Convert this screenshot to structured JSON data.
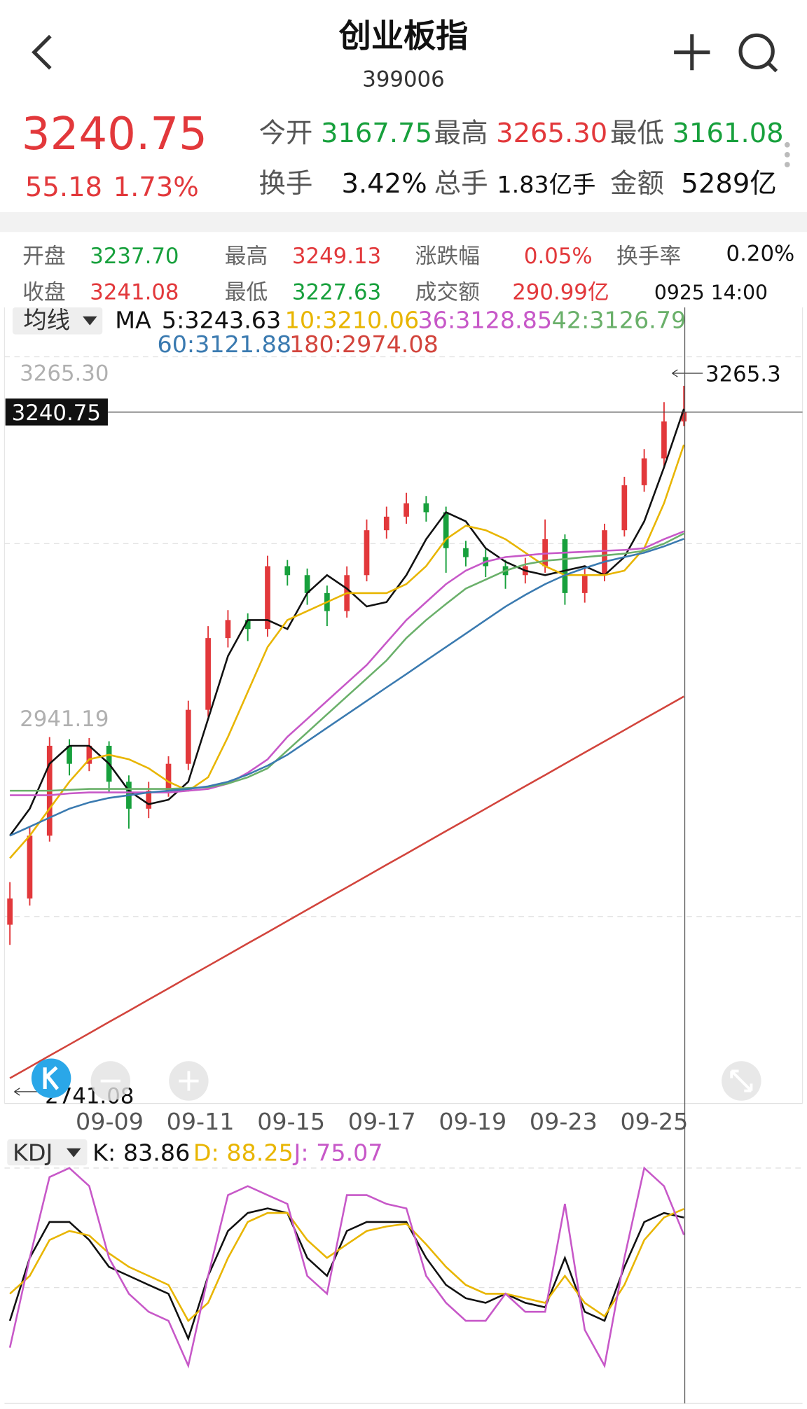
{
  "header": {
    "title": "创业板指",
    "code": "399006"
  },
  "quote": {
    "price": "3240.75",
    "change": "55.18",
    "change_pct": "1.73%",
    "fields": [
      {
        "label": "今开",
        "value": "3167.75"
      },
      {
        "label": "最高",
        "value": "3265.30"
      },
      {
        "label": "最低",
        "value": "3161.08"
      },
      {
        "label": "换手",
        "value": "3.42%"
      },
      {
        "label": "总手",
        "value": "1.83亿手"
      },
      {
        "label": "金额",
        "value": "5289亿"
      }
    ]
  },
  "detail": {
    "fields": [
      {
        "label": "开盘",
        "value": "3237.70"
      },
      {
        "label": "最高",
        "value": "3249.13"
      },
      {
        "label": "涨跌幅",
        "value": "0.05%"
      },
      {
        "label": "换手率",
        "value": "0.20%"
      },
      {
        "label": "收盘",
        "value": "3241.08"
      },
      {
        "label": "最低",
        "value": "3227.63"
      },
      {
        "label": "成交额",
        "value": "290.99亿"
      }
    ],
    "time": "0925 14:00"
  },
  "chart_data": [
    {
      "type": "candlestick",
      "indicator": "均线",
      "legend_title": "MA",
      "up_color": "#e2383b",
      "down_color": "#17a03c",
      "ylim": [
        2592.5,
        3292.5
      ],
      "yticks": [
        {
          "value": 3265.3,
          "label": "3265.30"
        },
        2941.19
      ],
      "last_price": {
        "value": 3240.75,
        "label": "3240.75"
      },
      "annotations": [
        {
          "value": 3265.3,
          "label": "3265.3"
        },
        {
          "value": 2741.08,
          "label": "2741.08"
        }
      ],
      "x_labels": [
        "09-09",
        "09-11",
        "09-15",
        "09-17",
        "09-19",
        "09-23",
        "09-25"
      ],
      "candles": [
        {
          "open": 2760,
          "high": 2800,
          "low": 2741.08,
          "close": 2784.6
        },
        {
          "open": 2784.6,
          "high": 2852,
          "low": 2778,
          "close": 2843.5
        },
        {
          "open": 2843.5,
          "high": 2936,
          "low": 2838,
          "close": 2927.8
        },
        {
          "open": 2927.8,
          "high": 2934,
          "low": 2900,
          "close": 2910.9
        },
        {
          "open": 2910.9,
          "high": 2935,
          "low": 2904,
          "close": 2927.8
        },
        {
          "open": 2927.8,
          "high": 2932,
          "low": 2884,
          "close": 2894.1
        },
        {
          "open": 2894.1,
          "high": 2900,
          "low": 2850,
          "close": 2868.8
        },
        {
          "open": 2868.8,
          "high": 2894,
          "low": 2860,
          "close": 2885.6
        },
        {
          "open": 2885.6,
          "high": 2918,
          "low": 2880,
          "close": 2910.9
        },
        {
          "open": 2910.9,
          "high": 2970,
          "low": 2905,
          "close": 2961.5
        },
        {
          "open": 2961.5,
          "high": 3040,
          "low": 2955,
          "close": 3028.8
        },
        {
          "open": 3028.8,
          "high": 3055,
          "low": 3020,
          "close": 3045.7
        },
        {
          "open": 3045.7,
          "high": 3052,
          "low": 3026,
          "close": 3037.3
        },
        {
          "open": 3037.3,
          "high": 3106,
          "low": 3030,
          "close": 3096.2
        },
        {
          "open": 3096.2,
          "high": 3102,
          "low": 3078,
          "close": 3087.8
        },
        {
          "open": 3087.8,
          "high": 3094,
          "low": 3060,
          "close": 3071.0
        },
        {
          "open": 3071.0,
          "high": 3078,
          "low": 3040,
          "close": 3054.1
        },
        {
          "open": 3054.1,
          "high": 3096,
          "low": 3048,
          "close": 3087.8
        },
        {
          "open": 3087.8,
          "high": 3140,
          "low": 3082,
          "close": 3129.9
        },
        {
          "open": 3129.9,
          "high": 3152,
          "low": 3122,
          "close": 3142.6
        },
        {
          "open": 3142.6,
          "high": 3165,
          "low": 3136,
          "close": 3155.2
        },
        {
          "open": 3155.2,
          "high": 3162,
          "low": 3138,
          "close": 3146.8
        },
        {
          "open": 3146.8,
          "high": 3152,
          "low": 3090,
          "close": 3113.1
        },
        {
          "open": 3113.1,
          "high": 3120,
          "low": 3096,
          "close": 3104.7
        },
        {
          "open": 3104.7,
          "high": 3112,
          "low": 3086,
          "close": 3096.2
        },
        {
          "open": 3096.2,
          "high": 3102,
          "low": 3075,
          "close": 3087.8
        },
        {
          "open": 3087.8,
          "high": 3104,
          "low": 3080,
          "close": 3096.2
        },
        {
          "open": 3096.2,
          "high": 3140,
          "low": 3090,
          "close": 3121.5
        },
        {
          "open": 3121.5,
          "high": 3126,
          "low": 3060,
          "close": 3071.0
        },
        {
          "open": 3071.0,
          "high": 3094,
          "low": 3062,
          "close": 3087.8
        },
        {
          "open": 3087.8,
          "high": 3136,
          "low": 3082,
          "close": 3129.9
        },
        {
          "open": 3129.9,
          "high": 3180,
          "low": 3124,
          "close": 3172.1
        },
        {
          "open": 3172.1,
          "high": 3206,
          "low": 3166,
          "close": 3197.3
        },
        {
          "open": 3197.3,
          "high": 3250,
          "low": 3190,
          "close": 3232.0
        },
        {
          "open": 3232.0,
          "high": 3265.3,
          "low": 3227.63,
          "close": 3240.75
        }
      ],
      "series": [
        {
          "name": "5:3243.63",
          "color": "#111111",
          "values": [
            2843.5,
            2868.8,
            2910.9,
            2927.8,
            2927.8,
            2910.9,
            2885.6,
            2873.0,
            2877.2,
            2894.1,
            2953.0,
            3012.0,
            3045.7,
            3045.7,
            3037.3,
            3071.0,
            3087.8,
            3075.2,
            3058.4,
            3062.5,
            3087.8,
            3121.5,
            3146.8,
            3138.3,
            3113.1,
            3100.4,
            3092.0,
            3087.8,
            3092.0,
            3096.2,
            3087.8,
            3104.7,
            3138.3,
            3188.9,
            3243.63
          ]
        },
        {
          "name": "10:3210.06",
          "color": "#e8b500",
          "values": [
            2822.4,
            2843.5,
            2868.8,
            2894.1,
            2915.1,
            2919.3,
            2915.1,
            2906.7,
            2894.1,
            2885.6,
            2898.3,
            2936.2,
            2978.3,
            3020.4,
            3045.7,
            3054.1,
            3062.5,
            3071.0,
            3071.0,
            3071.0,
            3079.4,
            3096.2,
            3121.5,
            3134.1,
            3129.9,
            3121.5,
            3108.9,
            3096.2,
            3087.8,
            3087.8,
            3087.8,
            3092.0,
            3113.1,
            3155.2,
            3210.06
          ]
        },
        {
          "name": "36:3128.85",
          "color": "#c758c8",
          "values": [
            2881.4,
            2881.4,
            2881.4,
            2883.1,
            2884.0,
            2884.0,
            2884.0,
            2884.0,
            2884.0,
            2885.6,
            2887.3,
            2892.4,
            2902.5,
            2915.1,
            2936.2,
            2953.0,
            2969.9,
            2986.7,
            3003.6,
            3024.6,
            3045.7,
            3062.5,
            3079.4,
            3092.0,
            3100.4,
            3104.7,
            3106.3,
            3108.0,
            3108.9,
            3109.7,
            3110.6,
            3111.4,
            3113.1,
            3121.5,
            3128.85
          ]
        },
        {
          "name": "42:3126.79",
          "color": "#6ab06a",
          "values": [
            2885.6,
            2885.6,
            2885.6,
            2886.5,
            2887.3,
            2887.3,
            2887.3,
            2887.3,
            2887.3,
            2888.2,
            2889.0,
            2892.4,
            2898.3,
            2906.7,
            2923.5,
            2940.4,
            2957.2,
            2974.1,
            2990.9,
            3007.8,
            3028.8,
            3045.7,
            3060.8,
            3075.2,
            3083.6,
            3092.0,
            3097.9,
            3101.3,
            3102.9,
            3104.7,
            3106.3,
            3108.0,
            3110.6,
            3117.3,
            3126.79
          ]
        },
        {
          "name": "60:3121.88",
          "color": "#3a7ab0",
          "values": [
            2843.5,
            2851.9,
            2860.4,
            2868.8,
            2874.7,
            2878.9,
            2881.4,
            2884.0,
            2885.6,
            2887.3,
            2889.8,
            2894.1,
            2900.8,
            2909.2,
            2919.3,
            2932.0,
            2944.6,
            2957.2,
            2969.9,
            2982.5,
            2995.1,
            3007.8,
            3020.4,
            3033.0,
            3045.7,
            3058.3,
            3069.3,
            3079.4,
            3087.8,
            3094.5,
            3100.4,
            3104.7,
            3108.9,
            3114.8,
            3121.88
          ]
        },
        {
          "name": "180:2974.08",
          "color": "#d2443c",
          "values": [
            2616.1,
            2626.6,
            2637.2,
            2647.7,
            2658.2,
            2668.8,
            2679.3,
            2689.8,
            2700.3,
            2710.9,
            2721.4,
            2731.9,
            2742.5,
            2753.0,
            2763.5,
            2774.1,
            2784.6,
            2795.1,
            2805.6,
            2816.2,
            2826.7,
            2837.2,
            2847.8,
            2858.3,
            2868.8,
            2879.4,
            2889.9,
            2900.4,
            2910.9,
            2921.5,
            2932.0,
            2942.5,
            2953.1,
            2963.6,
            2974.08
          ]
        }
      ]
    },
    {
      "type": "line",
      "indicator": "KDJ",
      "ylim": [
        -10,
        110
      ],
      "series": [
        {
          "name": "K: 83.86",
          "color": "#111111",
          "values": [
            31.2,
            63.3,
            81.6,
            81.6,
            72.4,
            58.7,
            54.1,
            49.5,
            45.0,
            22.1,
            54.1,
            77.0,
            86.2,
            88.5,
            86.2,
            63.3,
            54.1,
            77.0,
            81.6,
            81.6,
            81.6,
            63.3,
            49.5,
            42.7,
            40.4,
            45.0,
            40.4,
            38.1,
            63.3,
            35.8,
            31.2,
            58.7,
            81.6,
            86.2,
            83.86
          ]
        },
        {
          "name": "D: 88.25",
          "color": "#e8b500",
          "values": [
            45.0,
            54.1,
            72.4,
            77.0,
            74.7,
            65.6,
            58.7,
            54.1,
            49.5,
            31.2,
            40.4,
            63.3,
            81.6,
            86.2,
            86.2,
            72.4,
            63.3,
            70.2,
            77.0,
            79.3,
            80.7,
            70.2,
            58.7,
            49.5,
            45.0,
            45.0,
            42.7,
            40.4,
            54.1,
            40.4,
            33.5,
            49.5,
            72.4,
            83.9,
            88.25
          ]
        },
        {
          "name": "J: 75.07",
          "color": "#c758c8",
          "values": [
            17.5,
            63.3,
            104.5,
            109.1,
            99.9,
            63.3,
            45.0,
            35.8,
            31.2,
            8.3,
            54.1,
            95.3,
            99.9,
            95.3,
            90.8,
            54.1,
            45.0,
            95.3,
            95.3,
            90.8,
            88.5,
            54.1,
            40.4,
            31.2,
            31.2,
            45.0,
            35.8,
            35.8,
            90.8,
            26.6,
            8.3,
            63.3,
            109.1,
            99.9,
            75.07
          ]
        }
      ]
    }
  ]
}
